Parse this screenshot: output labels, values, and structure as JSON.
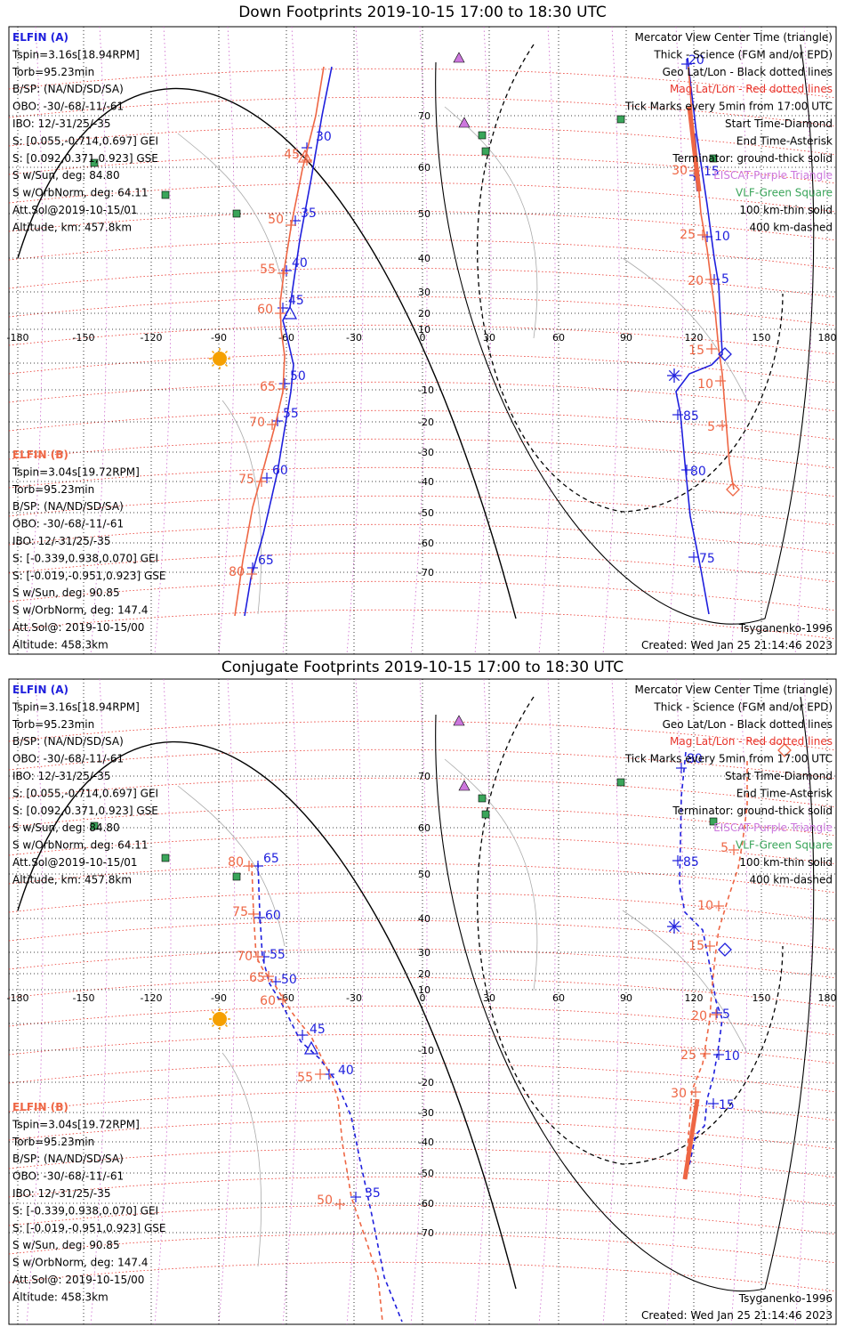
{
  "panels": [
    {
      "id": "down",
      "title": "Down Footprints 2019-10-15 17:00 to 18:30 UTC",
      "left_info_a": {
        "name": "ELFIN (A)",
        "lines": [
          "Tspin=3.16s[18.94RPM]",
          "Torb=95.23min",
          "B/SP: (NA/ND/SD/SA)",
          "OBO: -30/-68/-11/-61",
          "IBO: 12/-31/25/-35",
          "S: [0.055,-0.714,0.697] GEI",
          "S: [0.092,0.371,0.923] GSE",
          "S w/Sun, deg: 84.80",
          "S w/OrbNorm, deg: 64.11",
          "Att.Sol@2019-10-15/01",
          "Altitude, km: 457.8km"
        ]
      },
      "left_info_b": {
        "name": "ELFIN (B)",
        "lines": [
          "Tspin=3.04s[19.72RPM]",
          "Torb=95.23min",
          "B/SP: (NA/ND/SD/SA)",
          "OBO: -30/-68/-11/-61",
          "IBO: 12/-31/25/-35",
          "S: [-0.339,0.938,0.070] GEI",
          "S: [-0.019,-0.951,0.923] GSE",
          "S w/Sun, deg: 90.85",
          "S w/OrbNorm, deg: 147.4",
          "Att.Sol@: 2019-10-15/00",
          "Altitude: 458.3km"
        ]
      },
      "legend": [
        {
          "text": "Mercator View Center Time (triangle)",
          "color": "#000000"
        },
        {
          "text": "Thick - Science (FGM and/or EPD)",
          "color": "#000000"
        },
        {
          "text": "Geo Lat/Lon - Black dotted lines",
          "color": "#000000"
        },
        {
          "text": "Mag Lat/Lon - Red dotted lines",
          "color": "#e8332a"
        },
        {
          "text": "Tick Marks every 5min from 17:00 UTC",
          "color": "#000000"
        },
        {
          "text": "Start Time-Diamond",
          "color": "#000000"
        },
        {
          "text": "End Time-Asterisk",
          "color": "#000000"
        },
        {
          "text": "Terminator: ground-thick solid",
          "color": "#000000"
        },
        {
          "text": "EISCAT-Purple Triangle",
          "color": "#cc77dd"
        },
        {
          "text": "VLF-Green Square",
          "color": "#3aa55a"
        },
        {
          "text": "100 km-thin solid",
          "color": "#000000"
        },
        {
          "text": "400 km-dashed",
          "color": "#000000"
        }
      ],
      "model": "Tsyganenko-1996",
      "created": "Created: Wed Jan 25 21:14:46 2023"
    },
    {
      "id": "conjugate",
      "title": "Conjugate Footprints 2019-10-15 17:00 to 18:30 UTC",
      "left_info_a": {
        "name": "ELFIN (A)",
        "lines": [
          "Tspin=3.16s[18.94RPM]",
          "Torb=95.23min",
          "B/SP: (NA/ND/SD/SA)",
          "OBO: -30/-68/-11/-61",
          "IBO: 12/-31/25/-35",
          "S: [0.055,-0.714,0.697] GEI",
          "S: [0.092,0.371,0.923] GSE",
          "S w/Sun, deg: 84.80",
          "S w/OrbNorm, deg: 64.11",
          "Att.Sol@2019-10-15/01",
          "Altitude, km: 457.8km"
        ]
      },
      "left_info_b": {
        "name": "ELFIN (B)",
        "lines": [
          "Tspin=3.04s[19.72RPM]",
          "Torb=95.23min",
          "B/SP: (NA/ND/SD/SA)",
          "OBO: -30/-68/-11/-61",
          "IBO: 12/-31/25/-35",
          "S: [-0.339,0.938,0.070] GEI",
          "S: [-0.019,-0.951,0.923] GSE",
          "S w/Sun, deg: 90.85",
          "S w/OrbNorm, deg: 147.4",
          "Att.Sol@: 2019-10-15/00",
          "Altitude: 458.3km"
        ]
      },
      "legend": [
        {
          "text": "Mercator View Center Time (triangle)",
          "color": "#000000"
        },
        {
          "text": "Thick - Science (FGM and/or EPD)",
          "color": "#000000"
        },
        {
          "text": "Geo Lat/Lon - Black dotted lines",
          "color": "#000000"
        },
        {
          "text": "Mag Lat/Lon - Red dotted lines",
          "color": "#e8332a"
        },
        {
          "text": "Tick Marks every 5min from 17:00 UTC",
          "color": "#000000"
        },
        {
          "text": "Start Time-Diamond",
          "color": "#000000"
        },
        {
          "text": "End Time-Asterisk",
          "color": "#000000"
        },
        {
          "text": "Terminator: ground-thick solid",
          "color": "#000000"
        },
        {
          "text": "EISCAT-Purple Triangle",
          "color": "#cc77dd"
        },
        {
          "text": "VLF-Green Square",
          "color": "#3aa55a"
        },
        {
          "text": "100 km-thin solid",
          "color": "#000000"
        },
        {
          "text": "400 km-dashed",
          "color": "#000000"
        }
      ],
      "model": "Tsyganenko-1996",
      "created": "Created: Wed Jan 25 21:14:46 2023"
    }
  ],
  "map": {
    "lon_ticks": [
      "-180",
      "-150",
      "-120",
      "-90",
      "-60",
      "-30",
      "0",
      "30",
      "60",
      "90",
      "120",
      "150",
      "180"
    ],
    "lat_ticks": [
      "70",
      "60",
      "50",
      "40",
      "30",
      "20",
      "10",
      "-10",
      "-20",
      "-30",
      "-40",
      "-50",
      "-60",
      "-70"
    ],
    "colors": {
      "elfin_a": "#1f1fdd",
      "elfin_b": "#ee6644",
      "mag_grid": "#e8332a",
      "geo_grid": "#cc66cc",
      "sun": "#f5a000",
      "eiscat": "#cc77dd",
      "vlf": "#3aa55a"
    }
  },
  "tracks": {
    "down": {
      "a1_minute_labels": [
        "30",
        "35",
        "40",
        "45",
        "50",
        "55",
        "60",
        "65"
      ],
      "b1_minute_labels": [
        "45",
        "50",
        "55",
        "60",
        "65",
        "70",
        "75",
        "80"
      ],
      "a2_minute_labels": [
        "20",
        "15",
        "10",
        "5",
        "85",
        "80",
        "75"
      ],
      "b2_minute_labels": [
        "30",
        "25",
        "20",
        "15",
        "10",
        "5"
      ]
    },
    "conjugate": {
      "a1_minute_labels": [
        "65",
        "60",
        "55",
        "50",
        "45",
        "40",
        "35"
      ],
      "b1_minute_labels": [
        "80",
        "75",
        "70",
        "65",
        "60",
        "55",
        "50"
      ],
      "a2_minute_labels": [
        "80",
        "85",
        "5",
        "10",
        "15"
      ],
      "b2_minute_labels": [
        "5",
        "10",
        "15",
        "20",
        "25",
        "30"
      ]
    }
  }
}
